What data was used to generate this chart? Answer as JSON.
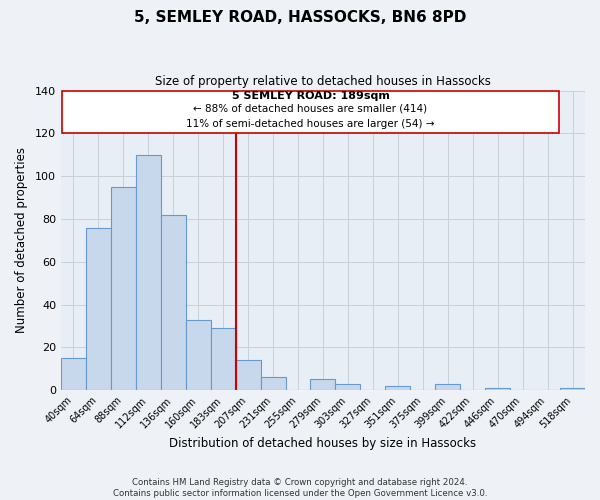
{
  "title": "5, SEMLEY ROAD, HASSOCKS, BN6 8PD",
  "subtitle": "Size of property relative to detached houses in Hassocks",
  "xlabel": "Distribution of detached houses by size in Hassocks",
  "ylabel": "Number of detached properties",
  "bar_labels": [
    "40sqm",
    "64sqm",
    "88sqm",
    "112sqm",
    "136sqm",
    "160sqm",
    "183sqm",
    "207sqm",
    "231sqm",
    "255sqm",
    "279sqm",
    "303sqm",
    "327sqm",
    "351sqm",
    "375sqm",
    "399sqm",
    "422sqm",
    "446sqm",
    "470sqm",
    "494sqm",
    "518sqm"
  ],
  "bar_values": [
    15,
    76,
    95,
    110,
    82,
    33,
    29,
    14,
    6,
    0,
    5,
    3,
    0,
    2,
    0,
    3,
    0,
    1,
    0,
    0,
    1
  ],
  "bar_color": "#c8d8ec",
  "bar_edge_color": "#6699cc",
  "vline_color": "#cc0000",
  "annotation_title": "5 SEMLEY ROAD: 189sqm",
  "annotation_line1": "← 88% of detached houses are smaller (414)",
  "annotation_line2": "11% of semi-detached houses are larger (54) →",
  "annotation_box_color": "#ffffff",
  "annotation_box_edge_color": "#cc0000",
  "ylim": [
    0,
    140
  ],
  "yticks": [
    0,
    20,
    40,
    60,
    80,
    100,
    120,
    140
  ],
  "footer1": "Contains HM Land Registry data © Crown copyright and database right 2024.",
  "footer2": "Contains public sector information licensed under the Open Government Licence v3.0.",
  "bg_color": "#eef2f7",
  "plot_bg_color": "#e8eef5"
}
